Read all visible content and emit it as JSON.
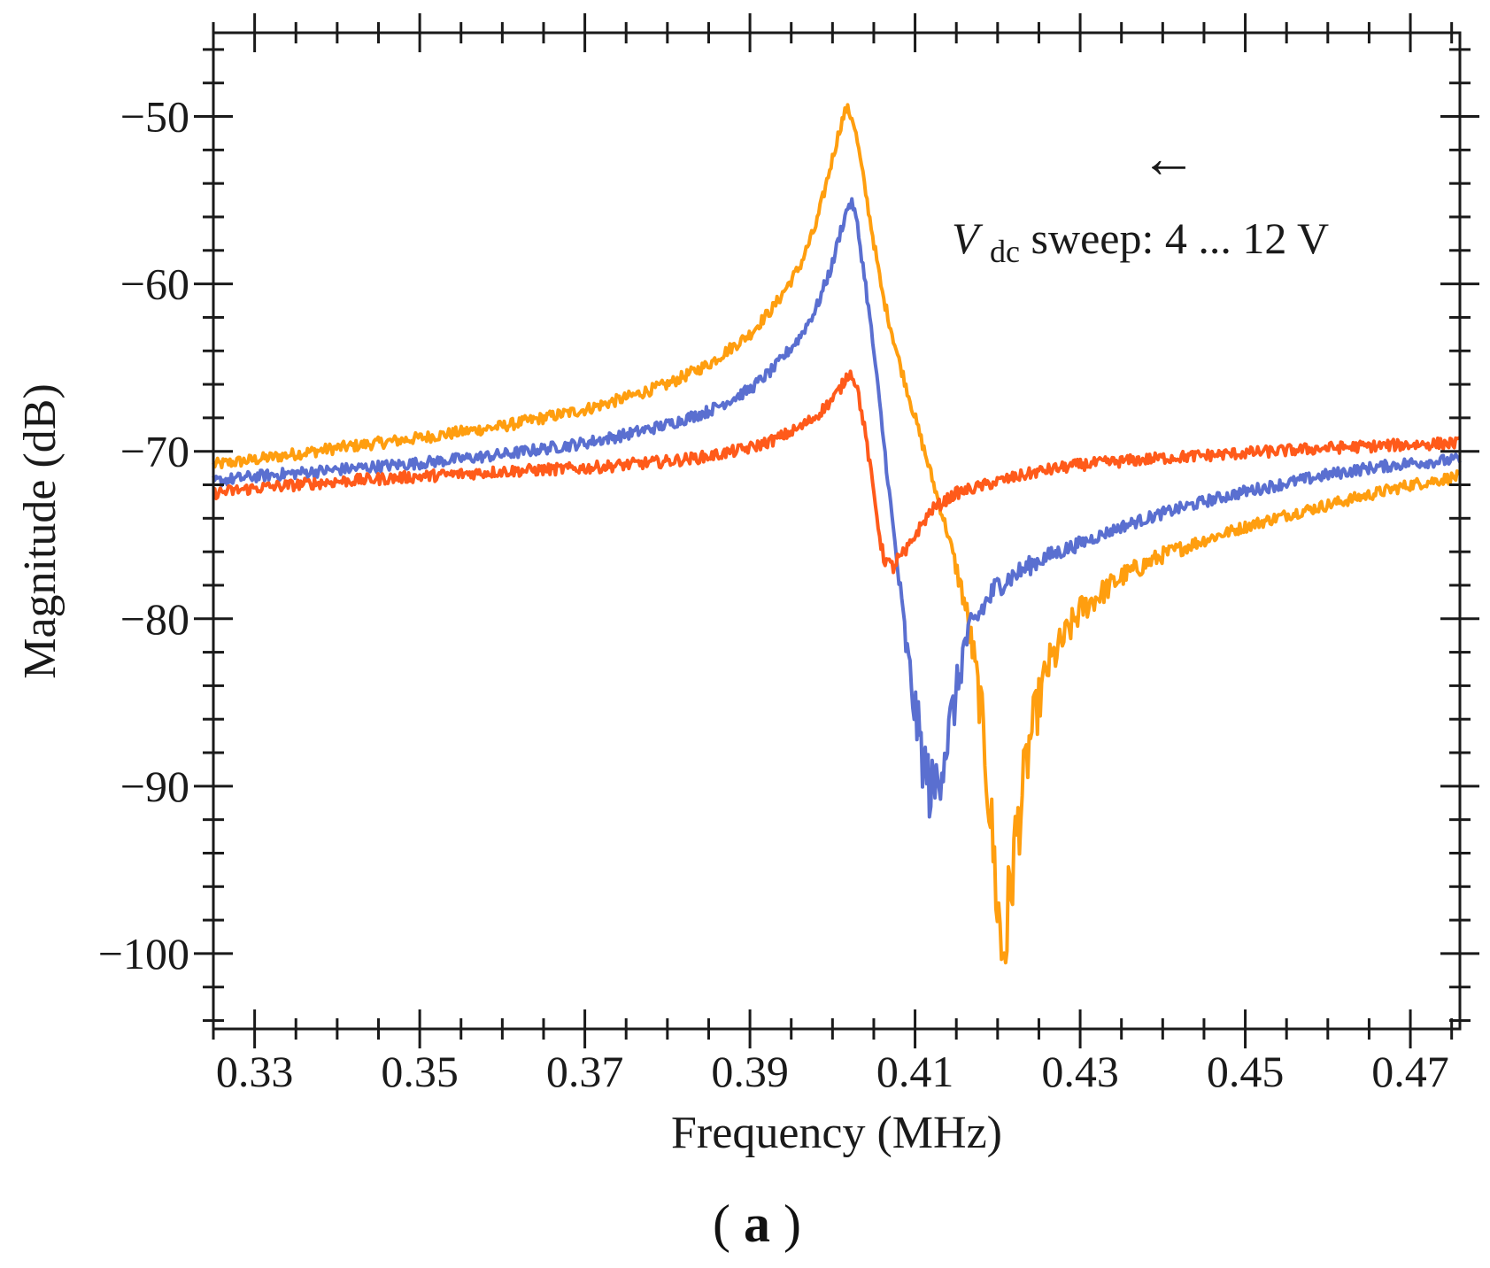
{
  "chart_data": {
    "type": "line",
    "title": "",
    "xlabel": "Frequency (MHz)",
    "ylabel": "Magnitude (dB)",
    "xlim": [
      0.325,
      0.476
    ],
    "ylim": [
      -104.5,
      -45
    ],
    "xticks": [
      0.33,
      0.35,
      0.37,
      0.39,
      0.41,
      0.43,
      0.45,
      0.47
    ],
    "xtick_labels": [
      "0.33",
      "0.35",
      "0.37",
      "0.39",
      "0.41",
      "0.43",
      "0.45",
      "0.47"
    ],
    "yticks": [
      -100,
      -90,
      -80,
      -70,
      -60,
      -50
    ],
    "ytick_labels": [
      "−100",
      "−90",
      "−80",
      "−70",
      "−60",
      "−50"
    ],
    "grid": false,
    "legend": "none",
    "annotation": {
      "arrow": "←",
      "var_main": "V",
      "var_sub": "dc",
      "text": " sweep: 4 ... 12 V"
    },
    "panel_label": {
      "open": "(",
      "letter": "a",
      "close": ")"
    },
    "series": [
      {
        "name": "orange",
        "color": "#ff9e0f",
        "x": [
          0.325,
          0.33,
          0.34,
          0.35,
          0.36,
          0.37,
          0.375,
          0.38,
          0.385,
          0.39,
          0.393,
          0.396,
          0.398,
          0.4,
          0.401,
          0.4017,
          0.4025,
          0.403,
          0.404,
          0.405,
          0.406,
          0.408,
          0.41,
          0.412,
          0.414,
          0.416,
          0.417,
          0.418,
          0.419,
          0.42,
          0.4205,
          0.421,
          0.422,
          0.424,
          0.426,
          0.43,
          0.435,
          0.44,
          0.445,
          0.45,
          0.455,
          0.46,
          0.465,
          0.47,
          0.476
        ],
        "y": [
          -70.8,
          -70.5,
          -69.8,
          -69.2,
          -68.5,
          -67.5,
          -66.8,
          -66.0,
          -64.8,
          -63.0,
          -61.3,
          -59.0,
          -56.5,
          -52.5,
          -50.5,
          -49.5,
          -50.2,
          -51.5,
          -54.5,
          -57.5,
          -60.5,
          -64.5,
          -68.0,
          -71.5,
          -75.0,
          -79.0,
          -82.0,
          -85.5,
          -91.0,
          -97.0,
          -100.0,
          -99.0,
          -94.0,
          -87.0,
          -83.0,
          -79.5,
          -77.5,
          -76.2,
          -75.3,
          -74.5,
          -73.8,
          -73.2,
          -72.6,
          -72.0,
          -71.5
        ]
      },
      {
        "name": "blue",
        "color": "#5a6fd0",
        "x": [
          0.325,
          0.33,
          0.34,
          0.35,
          0.36,
          0.37,
          0.375,
          0.38,
          0.385,
          0.39,
          0.393,
          0.396,
          0.398,
          0.4,
          0.401,
          0.402,
          0.4025,
          0.403,
          0.404,
          0.405,
          0.406,
          0.407,
          0.408,
          0.409,
          0.41,
          0.411,
          0.412,
          0.4125,
          0.413,
          0.414,
          0.415,
          0.416,
          0.418,
          0.42,
          0.425,
          0.43,
          0.435,
          0.44,
          0.445,
          0.45,
          0.455,
          0.46,
          0.465,
          0.47,
          0.476
        ],
        "y": [
          -71.8,
          -71.5,
          -71.1,
          -70.7,
          -70.2,
          -69.5,
          -69.0,
          -68.4,
          -67.6,
          -66.3,
          -65.0,
          -63.2,
          -61.5,
          -58.8,
          -56.8,
          -55.2,
          -55.3,
          -56.5,
          -60.0,
          -64.0,
          -68.5,
          -73.0,
          -77.5,
          -82.0,
          -85.5,
          -88.5,
          -90.5,
          -90.0,
          -89.0,
          -87.0,
          -84.5,
          -81.5,
          -79.5,
          -78.0,
          -76.5,
          -75.5,
          -74.5,
          -73.7,
          -73.0,
          -72.4,
          -71.9,
          -71.4,
          -71.0,
          -70.7,
          -70.5
        ]
      },
      {
        "name": "red-orange",
        "color": "#ff5a1a",
        "x": [
          0.325,
          0.33,
          0.34,
          0.35,
          0.36,
          0.37,
          0.375,
          0.38,
          0.385,
          0.39,
          0.393,
          0.396,
          0.398,
          0.4,
          0.401,
          0.402,
          0.4025,
          0.403,
          0.404,
          0.405,
          0.406,
          0.407,
          0.408,
          0.409,
          0.41,
          0.412,
          0.415,
          0.42,
          0.425,
          0.43,
          0.44,
          0.45,
          0.46,
          0.47,
          0.476
        ],
        "y": [
          -72.5,
          -72.2,
          -71.8,
          -71.5,
          -71.2,
          -71.0,
          -70.8,
          -70.6,
          -70.3,
          -69.8,
          -69.3,
          -68.6,
          -67.9,
          -66.9,
          -66.2,
          -65.3,
          -65.5,
          -66.2,
          -69.0,
          -72.5,
          -76.0,
          -77.0,
          -76.5,
          -76.0,
          -75.0,
          -73.5,
          -72.5,
          -71.8,
          -71.2,
          -70.8,
          -70.4,
          -70.1,
          -69.8,
          -69.6,
          -69.5
        ]
      }
    ]
  }
}
